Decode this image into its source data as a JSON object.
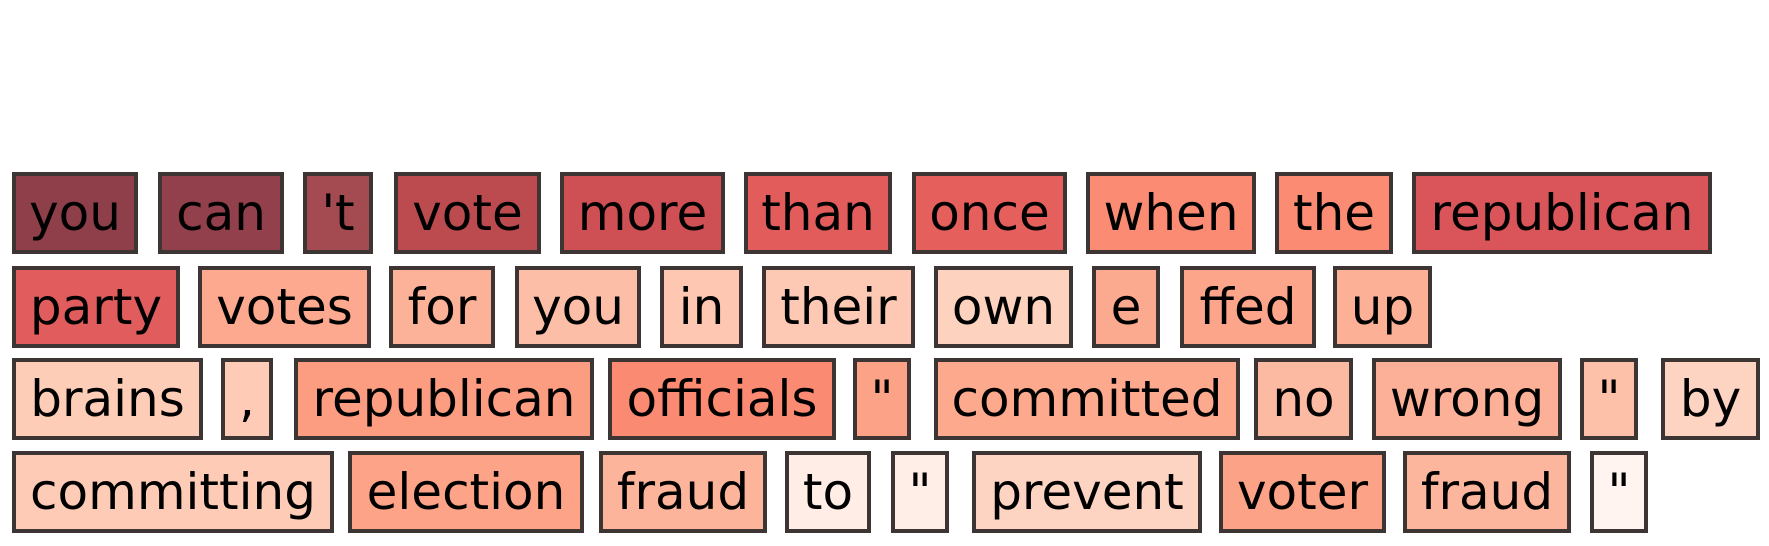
{
  "tokens": [
    {
      "text": "you",
      "color": "#8e3f4a"
    },
    {
      "text": "can",
      "color": "#92404b"
    },
    {
      "text": "'t",
      "color": "#a44a51"
    },
    {
      "text": "vote",
      "color": "#bc4b4f"
    },
    {
      "text": "more",
      "color": "#ce5055"
    },
    {
      "text": "than",
      "color": "#e25c5c"
    },
    {
      "text": "once",
      "color": "#e5605c"
    },
    {
      "text": "when",
      "color": "#fb8c73"
    },
    {
      "text": "the",
      "color": "#fb8c73"
    },
    {
      "text": "republican",
      "color": "#d9555a"
    },
    {
      "text": "party",
      "color": "#e15d5d"
    },
    {
      "text": "votes",
      "color": "#fca98f"
    },
    {
      "text": "for",
      "color": "#fcb299"
    },
    {
      "text": "you",
      "color": "#fdbea7"
    },
    {
      "text": "in",
      "color": "#fdc7b1"
    },
    {
      "text": "their",
      "color": "#fdc9b4"
    },
    {
      "text": "own",
      "color": "#fdd2bf"
    },
    {
      "text": "e",
      "color": "#fcaa8f"
    },
    {
      "text": "ffed",
      "color": "#fca58a"
    },
    {
      "text": "up",
      "color": "#fcb197"
    },
    {
      "text": "brains",
      "color": "#fdcdb8"
    },
    {
      "text": ",",
      "color": "#fdcbb6"
    },
    {
      "text": "republican",
      "color": "#fc9c81"
    },
    {
      "text": "officials",
      "color": "#fb8a72"
    },
    {
      "text": "\"",
      "color": "#fca286"
    },
    {
      "text": "committed",
      "color": "#fca98e"
    },
    {
      "text": "no",
      "color": "#fdbaa2"
    },
    {
      "text": "wrong",
      "color": "#fcb098"
    },
    {
      "text": "\"",
      "color": "#fdc0a9"
    },
    {
      "text": "by",
      "color": "#fdd3c1"
    },
    {
      "text": "committing",
      "color": "#fdcbb6"
    },
    {
      "text": "election",
      "color": "#fca388"
    },
    {
      "text": "fraud",
      "color": "#fcb49b"
    },
    {
      "text": "to",
      "color": "#ffede6"
    },
    {
      "text": "\"",
      "color": "#ffeee7"
    },
    {
      "text": "prevent",
      "color": "#fdd3c1"
    },
    {
      "text": "voter",
      "color": "#fca286"
    },
    {
      "text": "fraud",
      "color": "#fcb69e"
    },
    {
      "text": "\"",
      "color": "#fff4ef"
    }
  ]
}
